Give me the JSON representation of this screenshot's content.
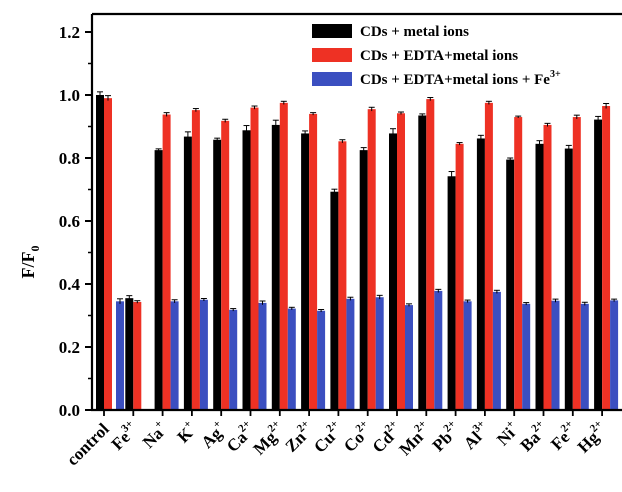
{
  "chart_data": {
    "type": "bar",
    "ylabel": "F/F",
    "ylabel_sub": "0",
    "ylim": [
      0,
      1.2
    ],
    "yticks": [
      "0.0",
      "0.2",
      "0.4",
      "0.6",
      "0.8",
      "1.0",
      "1.2"
    ],
    "categories": [
      {
        "base": "control",
        "sup": ""
      },
      {
        "base": "Fe",
        "sup": "3+"
      },
      {
        "base": "Na",
        "sup": "+"
      },
      {
        "base": "K",
        "sup": "+"
      },
      {
        "base": "Ag",
        "sup": "+"
      },
      {
        "base": "Ca",
        "sup": "2+"
      },
      {
        "base": "Mg",
        "sup": "2+"
      },
      {
        "base": "Zn",
        "sup": "2+"
      },
      {
        "base": "Cu",
        "sup": "2+"
      },
      {
        "base": "Co",
        "sup": "2+"
      },
      {
        "base": "Cd",
        "sup": "2+"
      },
      {
        "base": "Mn",
        "sup": "2+"
      },
      {
        "base": "Pb",
        "sup": "2+"
      },
      {
        "base": "Al",
        "sup": "3+"
      },
      {
        "base": "Ni",
        "sup": "+"
      },
      {
        "base": "Ba",
        "sup": "2+"
      },
      {
        "base": "Fe",
        "sup": "2+"
      },
      {
        "base": "Hg",
        "sup": "2+"
      }
    ],
    "series": [
      {
        "name": "CDs + metal ions",
        "name_sup": "",
        "color": "#000000",
        "values": [
          1.0,
          0.355,
          null,
          null,
          null,
          null,
          null,
          null,
          null,
          null,
          null,
          null,
          null,
          null,
          null,
          null,
          null,
          null
        ],
        "values_from_index_2": [
          0.825,
          0.868,
          0.858,
          0.888,
          0.905,
          0.878,
          0.693,
          0.825,
          0.878,
          0.935,
          0.742,
          0.862,
          0.795,
          0.845,
          0.83,
          0.922
        ],
        "errors": [
          0.01,
          0.008,
          0.004,
          0.015,
          0.005,
          0.015,
          0.015,
          0.008,
          0.008,
          0.008,
          0.015,
          0.005,
          0.015,
          0.01,
          0.005,
          0.01,
          0.01,
          0.01
        ]
      },
      {
        "name": "CDs + EDTA+metal ions",
        "name_sup": "",
        "color": "#ee3124",
        "values": [
          0.99,
          0.343,
          0.938,
          0.952,
          0.918,
          0.96,
          0.975,
          0.94,
          0.853,
          0.955,
          0.942,
          0.987,
          0.845,
          0.975,
          0.93,
          0.905,
          0.93,
          0.965
        ],
        "errors": [
          0.008,
          0.004,
          0.006,
          0.005,
          0.005,
          0.005,
          0.005,
          0.004,
          0.005,
          0.006,
          0.004,
          0.005,
          0.004,
          0.005,
          0.003,
          0.005,
          0.006,
          0.008
        ]
      },
      {
        "name": "CDs + EDTA+metal ions + Fe",
        "name_sup": "3+",
        "color": "#3b4fc0",
        "values": [
          0.345,
          null,
          0.345,
          0.35,
          0.318,
          0.34,
          0.322,
          0.315,
          0.353,
          0.358,
          0.333,
          0.378,
          0.345,
          0.375,
          0.337,
          0.347,
          0.337,
          0.348
        ],
        "errors": [
          0.008,
          0.0,
          0.005,
          0.004,
          0.004,
          0.006,
          0.004,
          0.004,
          0.005,
          0.006,
          0.004,
          0.005,
          0.004,
          0.005,
          0.004,
          0.005,
          0.005,
          0.004
        ]
      }
    ],
    "legend_position": "top-right",
    "grid": false
  }
}
